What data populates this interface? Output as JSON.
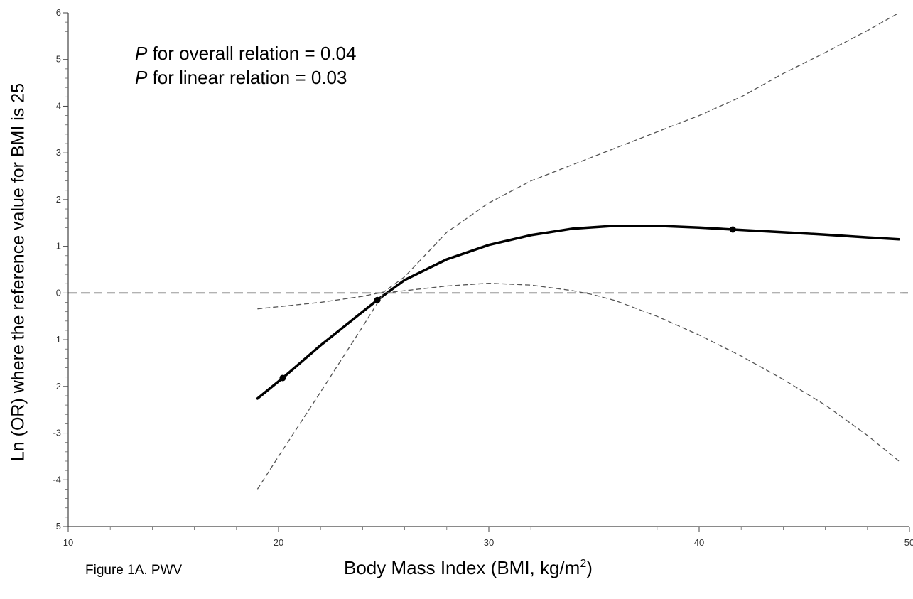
{
  "chart_data": {
    "type": "line",
    "xlabel_text": "Body Mass Index (BMI, kg/m",
    "xlabel_sup": "2",
    "xlabel_close": ")",
    "ylabel": "Ln (OR) where the reference value for BMI is 25",
    "caption": "Figure 1A. PWV",
    "annotations": [
      {
        "italic": "P",
        "text": " for overall relation = 0.04"
      },
      {
        "italic": "P",
        "text": " for linear relation = 0.03"
      }
    ],
    "xlim": [
      10,
      50
    ],
    "ylim": [
      -5,
      6
    ],
    "xticks": [
      10,
      20,
      30,
      40,
      50
    ],
    "yticks": [
      -5,
      -4,
      -3,
      -2,
      -1,
      0,
      1,
      2,
      3,
      4,
      5,
      6
    ],
    "reference_line_y": 0,
    "series": [
      {
        "role": "estimate",
        "x": [
          19,
          20.2,
          22,
          24,
          24.7,
          26,
          28,
          30,
          32,
          34,
          36,
          38,
          40,
          41.6,
          44,
          46,
          48,
          49.5
        ],
        "y": [
          -2.26,
          -1.82,
          -1.12,
          -0.4,
          -0.15,
          0.28,
          0.72,
          1.03,
          1.24,
          1.38,
          1.44,
          1.44,
          1.4,
          1.36,
          1.3,
          1.25,
          1.19,
          1.15
        ]
      },
      {
        "role": "upper_ci",
        "x": [
          19,
          22,
          24,
          25,
          26,
          28,
          30,
          32,
          34,
          36,
          38,
          40,
          42,
          44,
          46,
          48,
          49.5
        ],
        "y": [
          -0.34,
          -0.2,
          -0.07,
          0.02,
          0.35,
          1.3,
          1.93,
          2.4,
          2.75,
          3.1,
          3.45,
          3.8,
          4.2,
          4.7,
          5.15,
          5.62,
          6.0
        ]
      },
      {
        "role": "lower_ci",
        "x": [
          19,
          20,
          22,
          24,
          25,
          26,
          28,
          30,
          32,
          34,
          35,
          36,
          38,
          40,
          42,
          44,
          46,
          48,
          49.5
        ],
        "y": [
          -4.2,
          -3.5,
          -2.12,
          -0.72,
          0,
          0.05,
          0.15,
          0.21,
          0.17,
          0.05,
          -0.04,
          -0.16,
          -0.5,
          -0.9,
          -1.35,
          -1.85,
          -2.4,
          -3.05,
          -3.6
        ]
      }
    ],
    "markers": [
      {
        "x": 20.2,
        "y": -1.82
      },
      {
        "x": 24.7,
        "y": -0.15
      },
      {
        "x": 41.6,
        "y": 1.36
      }
    ]
  }
}
